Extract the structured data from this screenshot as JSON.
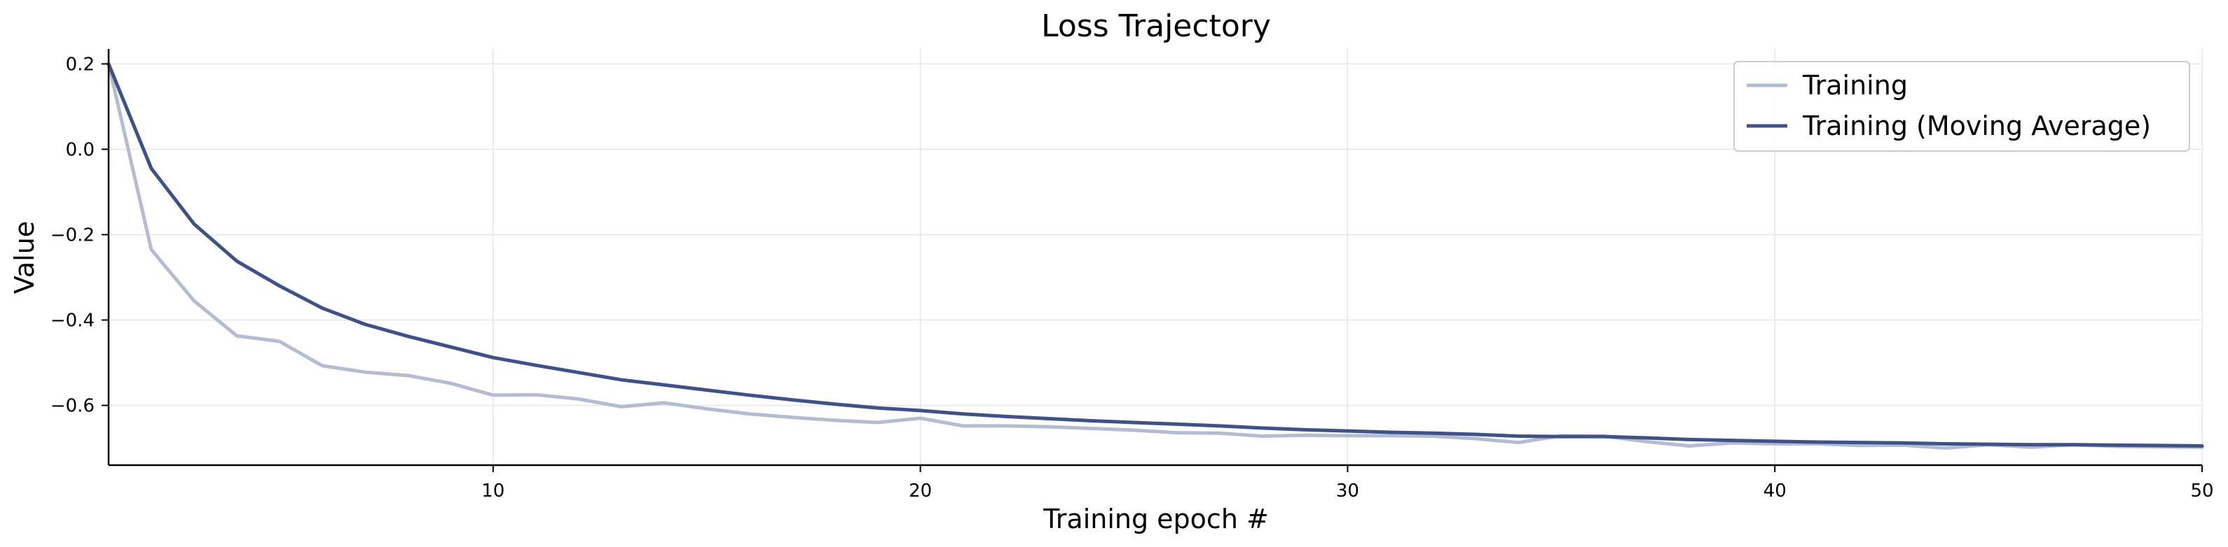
{
  "chart_data": {
    "type": "line",
    "title": "Loss Trajectory",
    "xlabel": "Training epoch #",
    "ylabel": "Value",
    "xlim": [
      1,
      50
    ],
    "ylim": [
      -0.74,
      0.235
    ],
    "xticks": [
      10,
      20,
      30,
      40,
      50
    ],
    "yticks": [
      0.2,
      0.0,
      -0.2,
      -0.4,
      -0.6
    ],
    "grid": true,
    "legend": "top-right",
    "x": [
      1,
      2,
      3,
      4,
      5,
      6,
      7,
      8,
      9,
      10,
      11,
      12,
      13,
      14,
      15,
      16,
      17,
      18,
      19,
      20,
      21,
      22,
      23,
      24,
      25,
      26,
      27,
      28,
      29,
      30,
      31,
      32,
      33,
      34,
      35,
      36,
      37,
      38,
      39,
      40,
      41,
      42,
      43,
      44,
      45,
      46,
      47,
      48,
      49,
      50
    ],
    "series": [
      {
        "name": "Training",
        "color": "#b4bcd2",
        "values": [
          0.2,
          -0.235,
          -0.355,
          -0.437,
          -0.45,
          -0.507,
          -0.522,
          -0.53,
          -0.548,
          -0.576,
          -0.575,
          -0.585,
          -0.603,
          -0.594,
          -0.608,
          -0.62,
          -0.628,
          -0.635,
          -0.64,
          -0.63,
          -0.648,
          -0.648,
          -0.65,
          -0.654,
          -0.658,
          -0.664,
          -0.665,
          -0.672,
          -0.67,
          -0.671,
          -0.671,
          -0.672,
          -0.678,
          -0.687,
          -0.671,
          -0.672,
          -0.685,
          -0.695,
          -0.688,
          -0.69,
          -0.69,
          -0.694,
          -0.693,
          -0.7,
          -0.692,
          -0.698,
          -0.692,
          -0.696,
          -0.697,
          -0.698
        ]
      },
      {
        "name": "Training (Moving Average)",
        "color": "#3f5287",
        "values": [
          0.2,
          -0.045,
          -0.175,
          -0.262,
          -0.32,
          -0.372,
          -0.41,
          -0.438,
          -0.463,
          -0.488,
          -0.506,
          -0.523,
          -0.54,
          -0.552,
          -0.564,
          -0.576,
          -0.587,
          -0.597,
          -0.606,
          -0.612,
          -0.62,
          -0.626,
          -0.631,
          -0.636,
          -0.64,
          -0.644,
          -0.648,
          -0.653,
          -0.657,
          -0.66,
          -0.663,
          -0.665,
          -0.668,
          -0.672,
          -0.673,
          -0.673,
          -0.676,
          -0.68,
          -0.682,
          -0.684,
          -0.686,
          -0.687,
          -0.688,
          -0.69,
          -0.691,
          -0.692,
          -0.692,
          -0.693,
          -0.694,
          -0.695
        ]
      }
    ]
  }
}
